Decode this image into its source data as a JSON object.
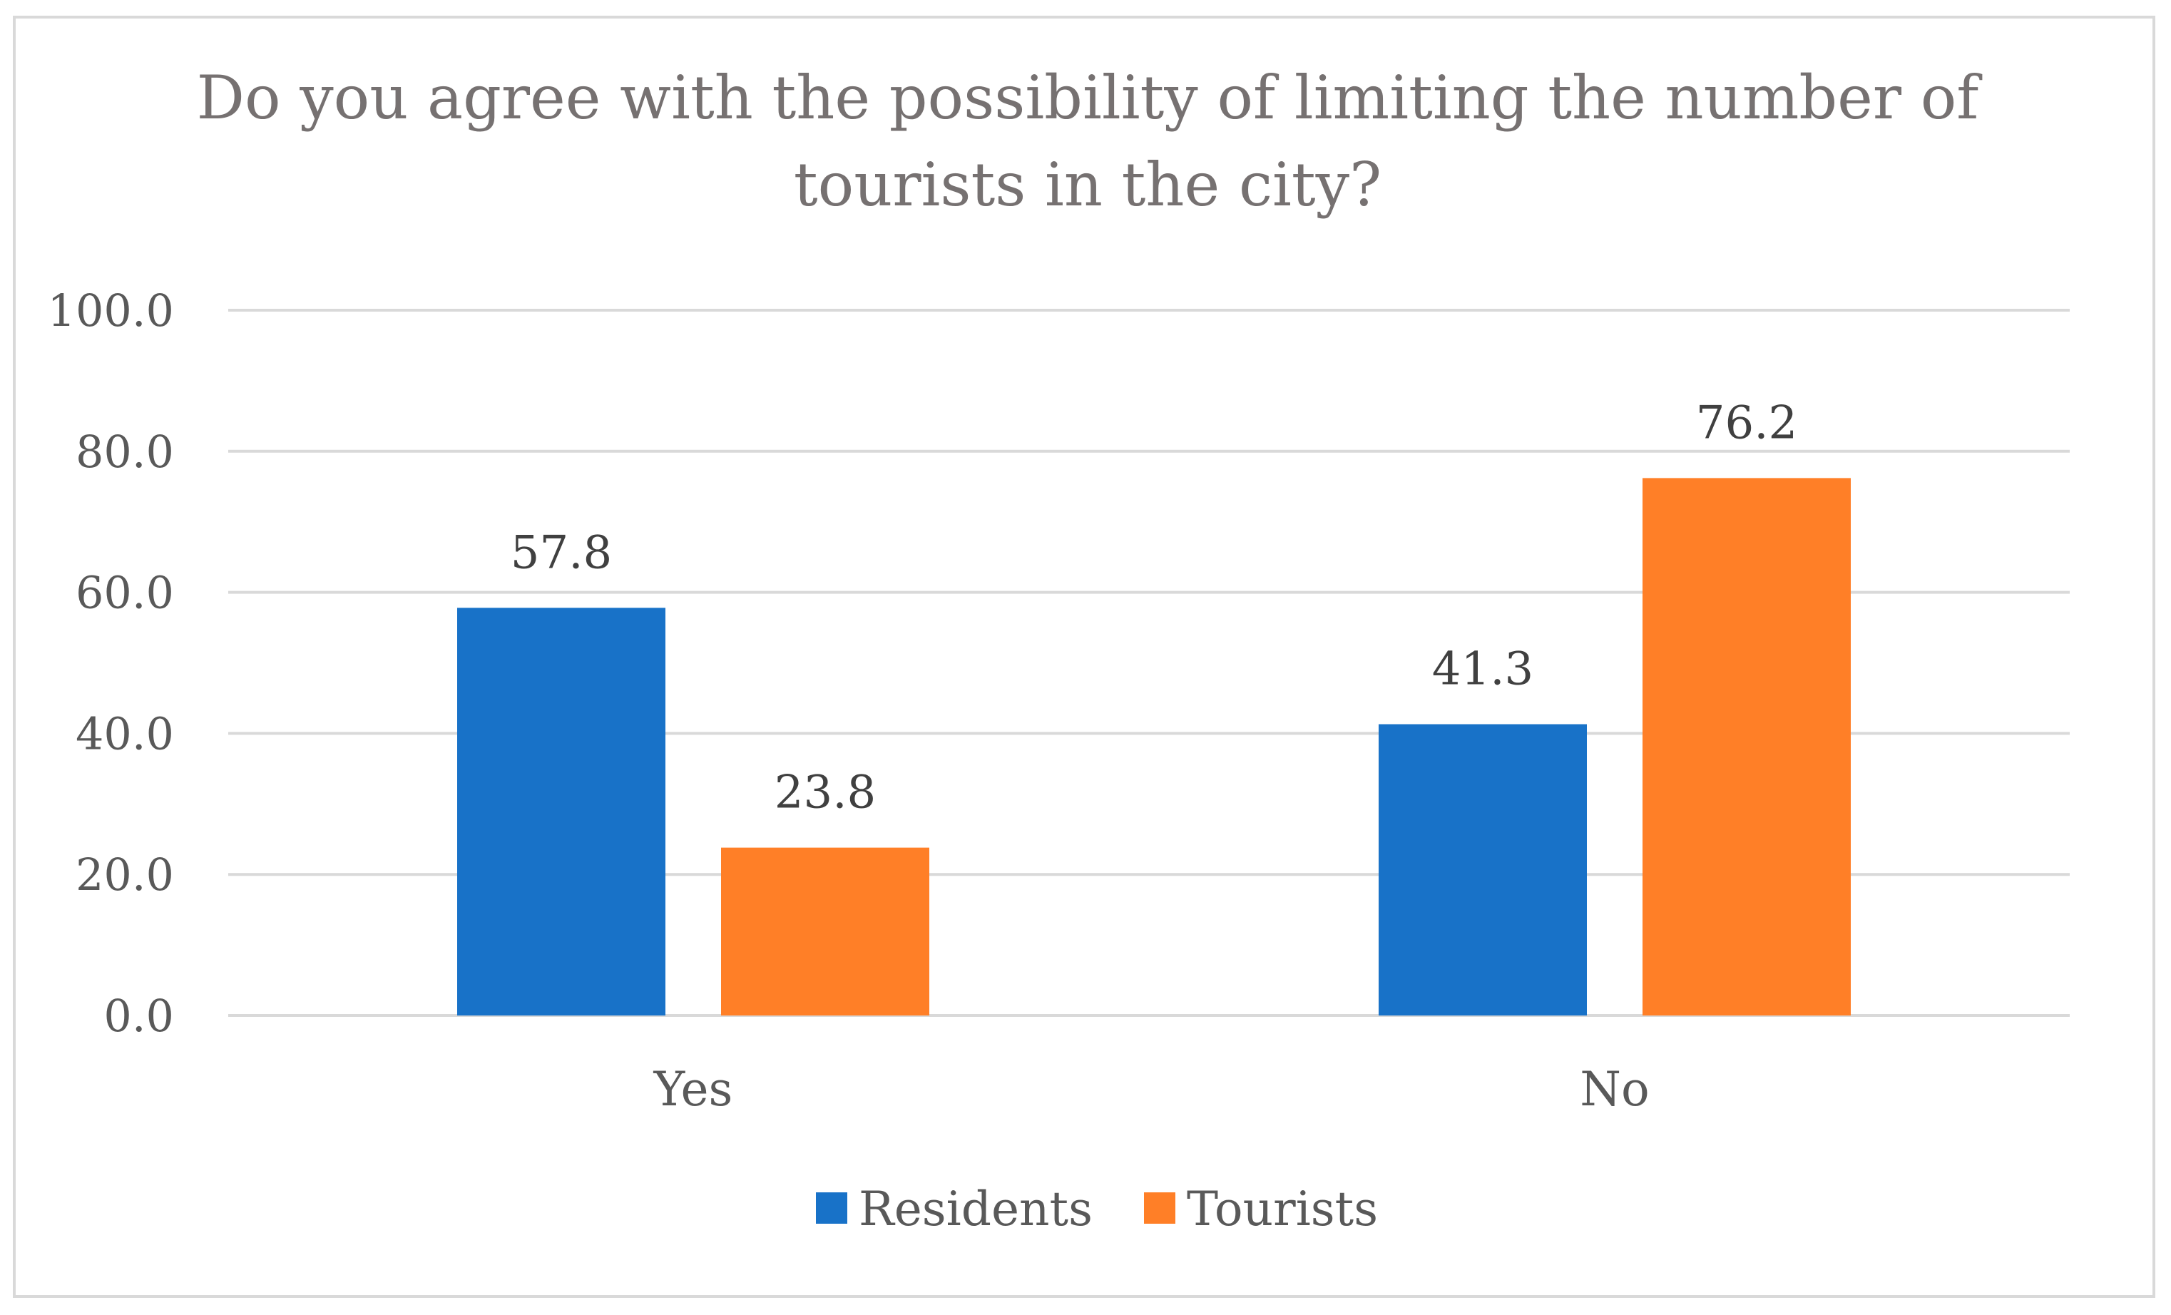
{
  "chart_data": {
    "type": "bar",
    "title_lines": [
      "Do you agree with the possibility of limiting the number of",
      "tourists in the city?"
    ],
    "categories": [
      "Yes",
      "No"
    ],
    "series": [
      {
        "name": "Residents",
        "color": "#1872C8",
        "values": [
          57.8,
          41.3
        ],
        "labels": [
          "57.8",
          "41.3"
        ]
      },
      {
        "name": "Tourists",
        "color": "#FF7F27",
        "values": [
          23.8,
          76.2
        ],
        "labels": [
          "23.8",
          "76.2"
        ]
      }
    ],
    "ylim": [
      0,
      100
    ],
    "yticks": [
      0,
      20,
      40,
      60,
      80,
      100
    ],
    "ytick_labels": [
      "0.0",
      "20.0",
      "40.0",
      "60.0",
      "80.0",
      "100.0"
    ],
    "grid": true,
    "legend_position": "bottom"
  }
}
